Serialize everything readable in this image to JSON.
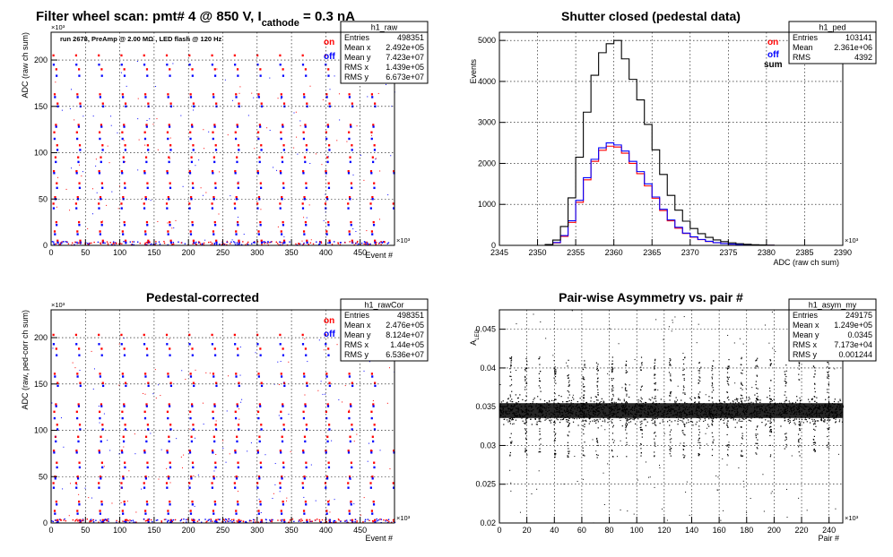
{
  "page": {
    "main_title": "Filter wheel scan: pmt#   4 @   850 V, I",
    "main_title_sub": "cathode",
    "main_title_tail": " = 0.3 nA"
  },
  "colors": {
    "on": "#ff0000",
    "off": "#0000ff",
    "sum": "#000000",
    "frame": "#000000",
    "grid": "#000000"
  },
  "chart_data": [
    {
      "id": "raw",
      "type": "scatter",
      "title": "",
      "annotation": "run 2678, PreAmp @ 2.00 MΩ , LED flash @  120 Hz",
      "xlabel": "Event #",
      "ylabel": "ADC (raw ch sum)",
      "x_multiplier": "×10³",
      "y_multiplier": "×10³",
      "xlim": [
        0,
        500
      ],
      "ylim": [
        0,
        230
      ],
      "xticks": [
        0,
        50,
        100,
        150,
        200,
        250,
        300,
        350,
        400,
        450
      ],
      "yticks": [
        0,
        50,
        100,
        150,
        200
      ],
      "legend": [
        {
          "label": "on",
          "color": "#ff0000"
        },
        {
          "label": "off",
          "color": "#0000ff"
        }
      ],
      "stats_box": {
        "name": "h1_raw",
        "rows": [
          {
            "label": "Entries",
            "value": "498351"
          },
          {
            "label": "Mean x",
            "value": "2.492e+05"
          },
          {
            "label": "Mean y",
            "value": "7.423e+07"
          },
          {
            "label": "RMS x",
            "value": "1.439e+05"
          },
          {
            "label": "RMS y",
            "value": "6.673e+07"
          }
        ]
      },
      "scan_levels_on": [
        205,
        190,
        163,
        153,
        130,
        122,
        108,
        95,
        80,
        67,
        52,
        45,
        25,
        15,
        5
      ],
      "scan_levels_off": [
        195,
        183,
        160,
        150,
        128,
        115,
        103,
        90,
        78,
        62,
        50,
        40,
        22,
        12,
        3
      ],
      "scan_period_events": 33,
      "n_scan_steps": 15
    },
    {
      "id": "ped",
      "type": "line",
      "title": "Shutter closed (pedestal data)",
      "xlabel": "ADC (raw ch sum)",
      "ylabel": "Events",
      "x_multiplier": "×10³",
      "xlim": [
        2345,
        2390
      ],
      "ylim": [
        0,
        5200
      ],
      "xticks": [
        2345,
        2350,
        2355,
        2360,
        2365,
        2370,
        2375,
        2380,
        2385,
        2390
      ],
      "yticks": [
        0,
        1000,
        2000,
        3000,
        4000,
        5000
      ],
      "legend": [
        {
          "label": "on",
          "color": "#ff0000"
        },
        {
          "label": "off",
          "color": "#0000ff"
        },
        {
          "label": "sum",
          "color": "#000000"
        }
      ],
      "stats_box": {
        "name": "h1_ped",
        "rows": [
          {
            "label": "Entries",
            "value": "103141"
          },
          {
            "label": "Mean",
            "value": "2.361e+06"
          },
          {
            "label": "RMS",
            "value": "4392"
          }
        ]
      },
      "series": [
        {
          "name": "on",
          "x": [
            2351,
            2352,
            2353,
            2354,
            2355,
            2356,
            2357,
            2358,
            2359,
            2360,
            2361,
            2362,
            2363,
            2364,
            2365,
            2366,
            2367,
            2368,
            2369,
            2370,
            2371,
            2372,
            2373,
            2374,
            2375,
            2376,
            2377,
            2378,
            2379,
            2380
          ],
          "values": [
            10,
            60,
            220,
            560,
            1050,
            1600,
            2050,
            2320,
            2420,
            2400,
            2250,
            2000,
            1750,
            1450,
            1150,
            850,
            600,
            420,
            290,
            200,
            140,
            95,
            65,
            45,
            30,
            20,
            12,
            8,
            5,
            2
          ]
        },
        {
          "name": "off",
          "x": [
            2351,
            2352,
            2353,
            2354,
            2355,
            2356,
            2357,
            2358,
            2359,
            2360,
            2361,
            2362,
            2363,
            2364,
            2365,
            2366,
            2367,
            2368,
            2369,
            2370,
            2371,
            2372,
            2373,
            2374,
            2375,
            2376,
            2377,
            2378,
            2379,
            2380
          ],
          "values": [
            12,
            70,
            240,
            600,
            1100,
            1650,
            2100,
            2380,
            2500,
            2450,
            2300,
            2050,
            1800,
            1500,
            1180,
            880,
            620,
            440,
            300,
            210,
            145,
            100,
            68,
            46,
            31,
            21,
            13,
            8,
            5,
            2
          ]
        },
        {
          "name": "sum",
          "x": [
            2351,
            2352,
            2353,
            2354,
            2355,
            2356,
            2357,
            2358,
            2359,
            2360,
            2361,
            2362,
            2363,
            2364,
            2365,
            2366,
            2367,
            2368,
            2369,
            2370,
            2371,
            2372,
            2373,
            2374,
            2375,
            2376,
            2377,
            2378,
            2379,
            2380
          ],
          "values": [
            22,
            130,
            460,
            1160,
            2150,
            3250,
            4150,
            4700,
            4920,
            5000,
            4550,
            4050,
            3550,
            2950,
            2330,
            1730,
            1220,
            860,
            590,
            410,
            285,
            195,
            133,
            91,
            61,
            41,
            25,
            16,
            10,
            4
          ]
        }
      ]
    },
    {
      "id": "rawCor",
      "type": "scatter",
      "title": "Pedestal-corrected",
      "xlabel": "Event #",
      "ylabel": "ADC (raw, ped-corr ch sum)",
      "x_multiplier": "×10³",
      "y_multiplier": "×10³",
      "xlim": [
        0,
        500
      ],
      "ylim": [
        0,
        230
      ],
      "xticks": [
        0,
        50,
        100,
        150,
        200,
        250,
        300,
        350,
        400,
        450
      ],
      "yticks": [
        0,
        50,
        100,
        150,
        200
      ],
      "legend": [
        {
          "label": "on",
          "color": "#ff0000"
        },
        {
          "label": "off",
          "color": "#0000ff"
        }
      ],
      "stats_box": {
        "name": "h1_rawCor",
        "rows": [
          {
            "label": "Entries",
            "value": "498351"
          },
          {
            "label": "Mean x",
            "value": "2.476e+05"
          },
          {
            "label": "Mean y",
            "value": "8.124e+07"
          },
          {
            "label": "RMS x",
            "value": "1.44e+05"
          },
          {
            "label": "RMS y",
            "value": "6.536e+07"
          }
        ]
      },
      "scan_levels_on": [
        203,
        188,
        161,
        151,
        128,
        120,
        106,
        93,
        78,
        65,
        50,
        43,
        23,
        13,
        3
      ],
      "scan_levels_off": [
        193,
        181,
        158,
        148,
        126,
        113,
        101,
        88,
        76,
        60,
        48,
        38,
        20,
        10,
        1
      ],
      "scan_period_events": 33,
      "n_scan_steps": 15
    },
    {
      "id": "asym",
      "type": "scatter",
      "title": "Pair-wise Asymmetry vs. pair #",
      "xlabel": "Pair #",
      "ylabel": "A_LED",
      "ylabel_main": "A",
      "ylabel_sub": "LED",
      "x_multiplier": "×10³",
      "xlim": [
        0,
        250
      ],
      "ylim": [
        0.02,
        0.0475
      ],
      "xticks": [
        0,
        20,
        40,
        60,
        80,
        100,
        120,
        140,
        160,
        180,
        200,
        220,
        240
      ],
      "yticks": [
        0.02,
        0.025,
        0.03,
        0.035,
        0.04,
        0.045
      ],
      "ytick_labels": [
        "0.02",
        "0.025",
        "0.03",
        "0.035",
        "0.04",
        "0.045"
      ],
      "stats_box": {
        "name": "h1_asym_my",
        "rows": [
          {
            "label": "Entries",
            "value": "249175"
          },
          {
            "label": "Mean x",
            "value": "1.249e+05"
          },
          {
            "label": "Mean y",
            "value": "0.0345"
          },
          {
            "label": "RMS x",
            "value": "7.173e+04"
          },
          {
            "label": "RMS y",
            "value": "0.001244"
          }
        ]
      },
      "band_center": 0.0345,
      "band_halfwidth": 0.0012,
      "spike_positions": [
        8,
        19,
        29,
        40,
        50,
        61,
        71,
        82,
        92,
        103,
        113,
        124,
        134,
        145,
        155,
        166,
        176,
        187,
        197,
        208,
        218,
        229,
        239
      ]
    }
  ]
}
